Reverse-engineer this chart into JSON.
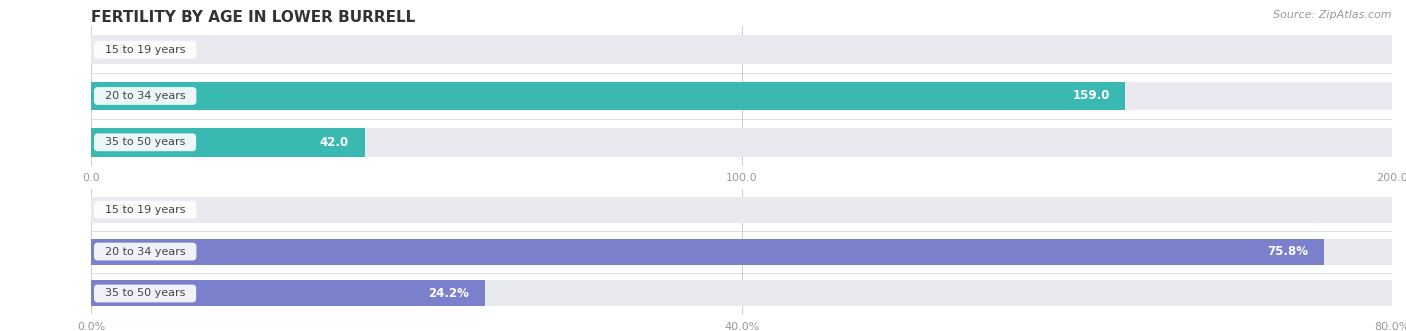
{
  "title": "FERTILITY BY AGE IN LOWER BURRELL",
  "source": "Source: ZipAtlas.com",
  "top_group": {
    "categories": [
      "15 to 19 years",
      "20 to 34 years",
      "35 to 50 years"
    ],
    "values": [
      0.0,
      159.0,
      42.0
    ],
    "xlim": [
      0,
      200
    ],
    "xticks": [
      0.0,
      100.0,
      200.0
    ],
    "bar_color": "#3ab8b2",
    "label_suffix": ""
  },
  "bottom_group": {
    "categories": [
      "15 to 19 years",
      "20 to 34 years",
      "35 to 50 years"
    ],
    "values": [
      0.0,
      75.8,
      24.2
    ],
    "xlim": [
      0,
      80
    ],
    "xticks": [
      0.0,
      40.0,
      80.0
    ],
    "bar_color": "#7b80cc",
    "label_suffix": "%"
  },
  "bar_height": 0.62,
  "bar_gap": 0.15,
  "label_color_inside": "#ffffff",
  "label_color_outside": "#555555",
  "tick_label_color": "#999999",
  "title_color": "#333333",
  "bg_color": "#ffffff",
  "bar_bg_color": "#e8eaf0",
  "title_fontsize": 11,
  "label_fontsize": 8.5,
  "tick_fontsize": 8,
  "cat_fontsize": 8,
  "source_fontsize": 8
}
